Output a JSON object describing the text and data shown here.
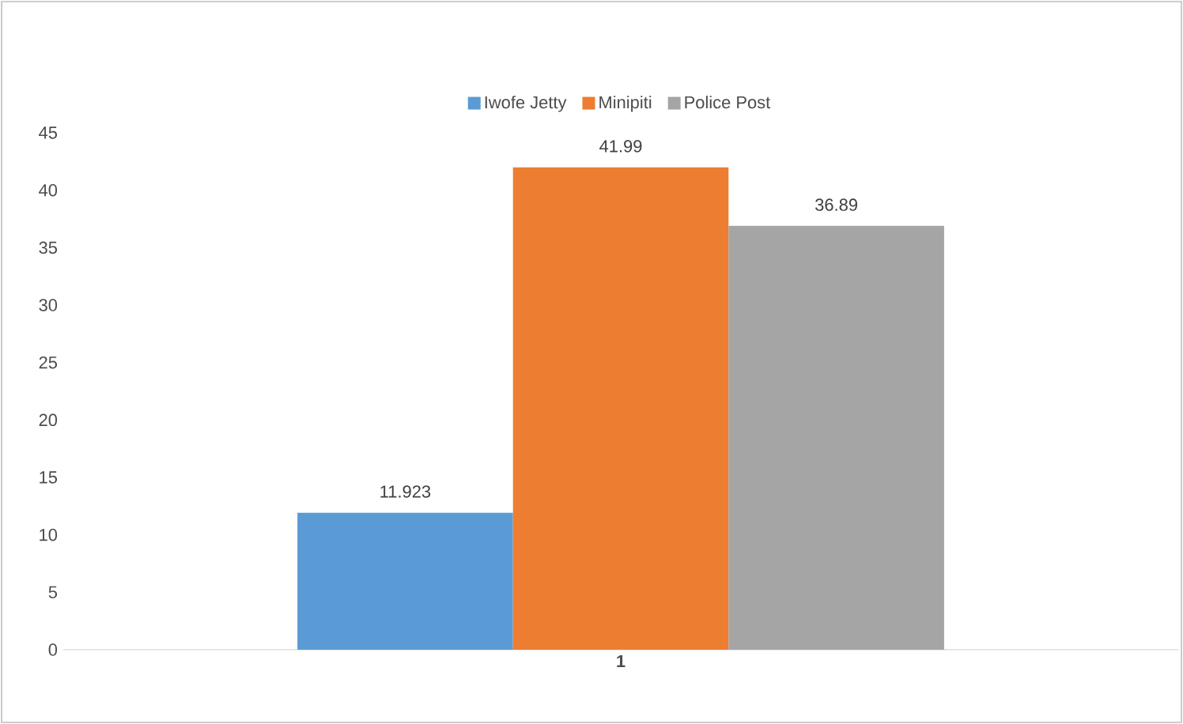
{
  "chart_data": {
    "type": "bar",
    "categories": [
      "1"
    ],
    "series": [
      {
        "name": "Iwofe Jetty",
        "color": "#5b9bd5",
        "values": [
          11.923
        ]
      },
      {
        "name": "Minipiti",
        "color": "#ed7d31",
        "values": [
          41.99
        ]
      },
      {
        "name": "Police Post",
        "color": "#a5a5a5",
        "values": [
          36.89
        ]
      }
    ],
    "ylim": [
      0,
      45
    ],
    "yticks": [
      0,
      5,
      10,
      15,
      20,
      25,
      30,
      35,
      40,
      45
    ],
    "data_labels": true,
    "legend": "top",
    "grid": false
  }
}
